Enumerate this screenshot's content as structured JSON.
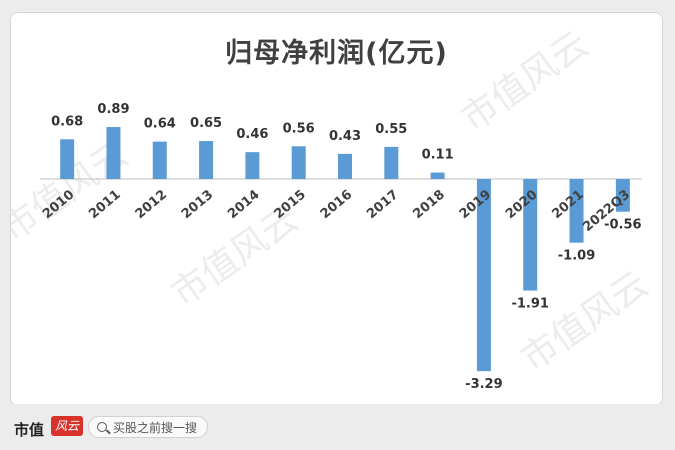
{
  "chart_data": {
    "type": "bar",
    "title": "归母净利润(亿元)",
    "categories": [
      "2010",
      "2011",
      "2012",
      "2013",
      "2014",
      "2015",
      "2016",
      "2017",
      "2018",
      "2019",
      "2020",
      "2021",
      "2022Q3"
    ],
    "values": [
      0.68,
      0.89,
      0.64,
      0.65,
      0.46,
      0.56,
      0.43,
      0.55,
      0.11,
      -3.29,
      -1.91,
      -1.09,
      -0.56
    ],
    "data_labels": [
      "0.68",
      "0.89",
      "0.64",
      "0.65",
      "0.46",
      "0.56",
      "0.43",
      "0.55",
      "0.11",
      "-3.29",
      "-1.91",
      "-1.09",
      "-0.56"
    ],
    "xlabel": "",
    "ylabel": "",
    "ylim": [
      -3.29,
      0.89
    ],
    "bar_color": "#5b9bd5",
    "grid": false,
    "legend": "none"
  },
  "watermark": {
    "text": "市值风云"
  },
  "footer": {
    "brand": "市值",
    "brand_badge": "风云",
    "search_placeholder": "买股之前搜一搜"
  }
}
